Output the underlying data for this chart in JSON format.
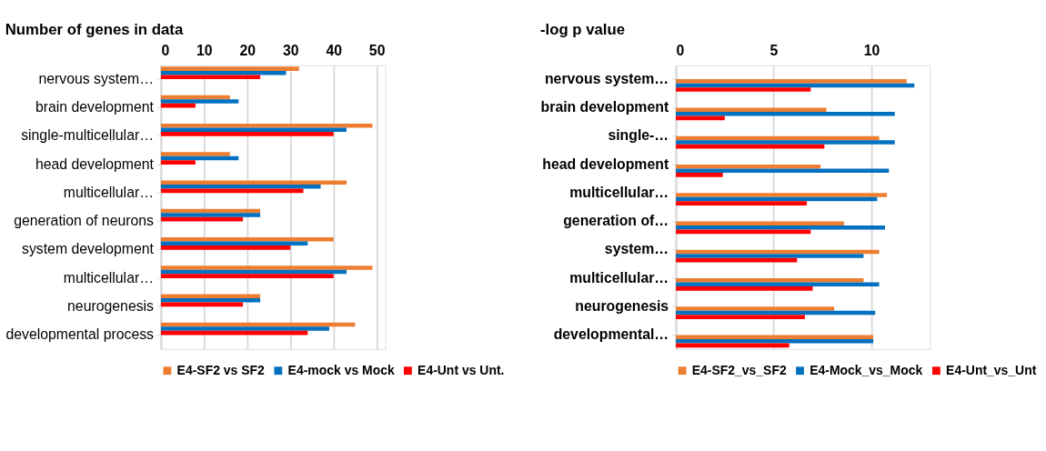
{
  "chart_data": [
    {
      "type": "bar",
      "orientation": "horizontal",
      "title": "Number of genes in data",
      "categories": [
        "nervous system…",
        "brain development",
        "single-multicellular…",
        "head development",
        "multicellular…",
        "generation of neurons",
        "system development",
        "multicellular…",
        "neurogenesis",
        "developmental process"
      ],
      "series": [
        {
          "name": "E4-SF2 vs SF2",
          "color": "#ed7d31",
          "values": [
            32,
            16,
            49,
            16,
            43,
            23,
            40,
            49,
            23,
            45
          ]
        },
        {
          "name": "E4-mock vs Mock",
          "color": "#0070c0",
          "values": [
            29,
            18,
            43,
            18,
            37,
            23,
            34,
            43,
            23,
            39
          ]
        },
        {
          "name": "E4-Unt vs Unt.",
          "color": "#ff0000",
          "values": [
            23,
            8,
            40,
            8,
            33,
            19,
            30,
            40,
            19,
            34
          ]
        }
      ],
      "xlim": [
        0,
        52
      ],
      "xticks": [
        0,
        10,
        20,
        30,
        40,
        50
      ],
      "grid": "x",
      "legend": "bottom"
    },
    {
      "type": "bar",
      "orientation": "horizontal",
      "title": "-log p value",
      "categories": [
        "nervous system…",
        "brain development",
        "single-…",
        "head development",
        "multicellular…",
        "generation of…",
        "system…",
        "multicellular…",
        "neurogenesis",
        "developmental…"
      ],
      "series": [
        {
          "name": "E4-SF2_vs_SF2",
          "color": "#ed7d31",
          "values": [
            11.8,
            7.7,
            10.4,
            7.4,
            10.8,
            8.6,
            10.4,
            9.6,
            8.1,
            10.1
          ]
        },
        {
          "name": "E4-Mock_vs_Mock",
          "color": "#0070c0",
          "values": [
            12.2,
            11.2,
            11.2,
            10.9,
            10.3,
            10.7,
            9.6,
            10.4,
            10.2,
            10.1
          ]
        },
        {
          "name": "E4-Unt_vs_Unt",
          "color": "#ff0000",
          "values": [
            6.9,
            2.5,
            7.6,
            2.4,
            6.7,
            6.9,
            6.2,
            7.0,
            6.6,
            5.8
          ]
        }
      ],
      "xlim": [
        0,
        13
      ],
      "xticks": [
        0,
        5,
        10
      ],
      "grid": "x",
      "legend": "bottom"
    }
  ]
}
